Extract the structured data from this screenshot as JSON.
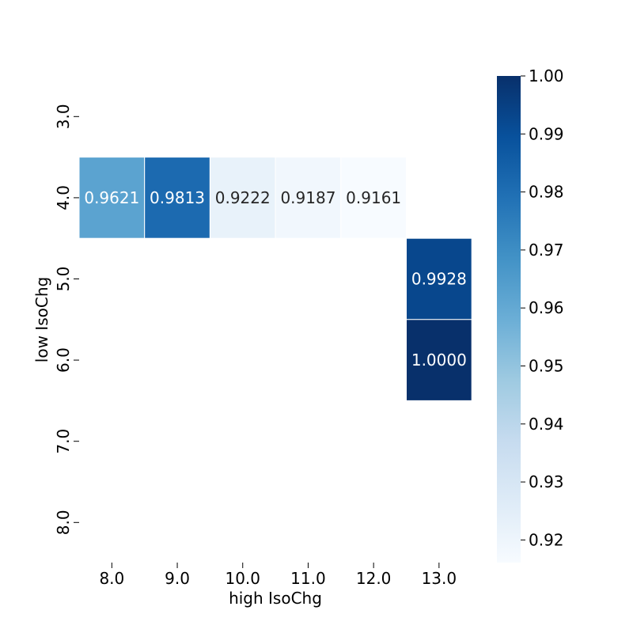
{
  "chart_data": {
    "type": "heatmap",
    "xlabel": "high IsoChg",
    "ylabel": "low IsoChg",
    "x_categories": [
      "8.0",
      "9.0",
      "10.0",
      "11.0",
      "12.0",
      "13.0"
    ],
    "y_categories": [
      "3.0",
      "4.0",
      "5.0",
      "6.0",
      "7.0",
      "8.0"
    ],
    "cells": [
      {
        "x": "8.0",
        "y": "4.0",
        "value": 0.9621,
        "label": "0.9621"
      },
      {
        "x": "9.0",
        "y": "4.0",
        "value": 0.9813,
        "label": "0.9813"
      },
      {
        "x": "10.0",
        "y": "4.0",
        "value": 0.9222,
        "label": "0.9222"
      },
      {
        "x": "11.0",
        "y": "4.0",
        "value": 0.9187,
        "label": "0.9187"
      },
      {
        "x": "12.0",
        "y": "4.0",
        "value": 0.9161,
        "label": "0.9161"
      },
      {
        "x": "13.0",
        "y": "5.0",
        "value": 0.9928,
        "label": "0.9928"
      },
      {
        "x": "13.0",
        "y": "6.0",
        "value": 1.0,
        "label": "1.0000"
      }
    ],
    "colormap": "Blues",
    "colorbar": {
      "range": [
        0.9161,
        1.0
      ],
      "ticks": [
        "1.00",
        "0.99",
        "0.98",
        "0.97",
        "0.96",
        "0.95",
        "0.94",
        "0.93",
        "0.92"
      ],
      "placement": "right"
    }
  }
}
